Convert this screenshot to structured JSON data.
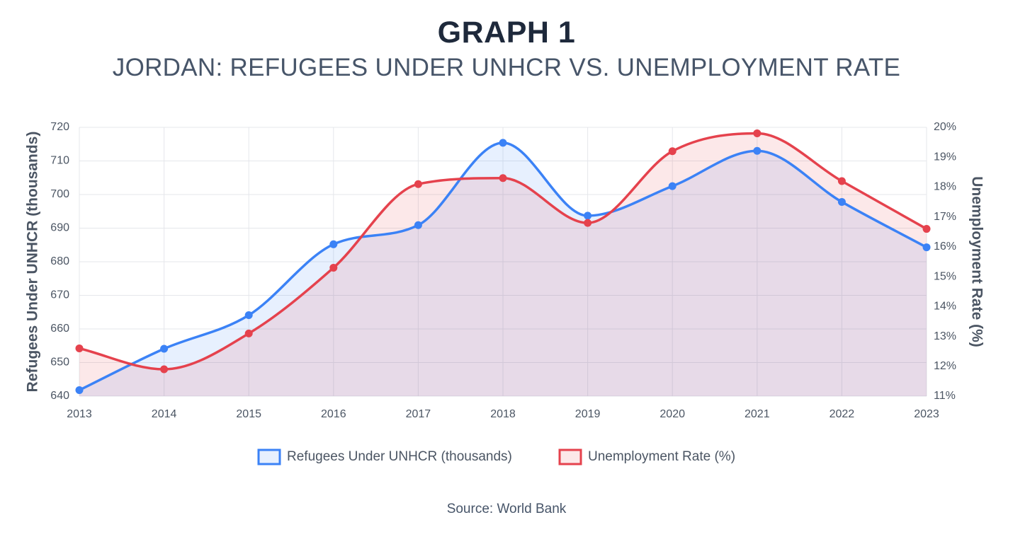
{
  "page": {
    "title": "GRAPH 1",
    "subtitle": "JORDAN: REFUGEES UNDER UNHCR VS. UNEMPLOYMENT RATE",
    "source": "Source: World Bank"
  },
  "colors": {
    "refugees": "#3b82f6",
    "refugees_fill": "rgba(59,130,246,0.12)",
    "unemployment": "#e5424d",
    "unemployment_fill": "rgba(229,66,77,0.12)",
    "grid": "#e5e7eb",
    "tick_text": "#4b5563",
    "axis_title": "#4b5563"
  },
  "chart_data": {
    "type": "line",
    "x": [
      "2013",
      "2014",
      "2015",
      "2016",
      "2017",
      "2018",
      "2019",
      "2020",
      "2021",
      "2022",
      "2023"
    ],
    "series": [
      {
        "name": "Refugees Under UNHCR (thousands)",
        "axis": "left",
        "values": [
          641.8,
          654.1,
          664.1,
          685.2,
          690.9,
          715.4,
          693.7,
          702.5,
          713.0,
          697.8,
          684.3
        ]
      },
      {
        "name": "Unemployment Rate (%)",
        "axis": "right",
        "values": [
          12.6,
          11.9,
          13.1,
          15.3,
          18.1,
          18.3,
          16.8,
          19.2,
          19.8,
          18.2,
          16.6
        ]
      }
    ],
    "y_left": {
      "label": "Refugees Under UNHCR (thousands)",
      "ylim": [
        640,
        720
      ],
      "ticks": [
        "640",
        "650",
        "660",
        "670",
        "680",
        "690",
        "700",
        "710",
        "720"
      ]
    },
    "y_right": {
      "label": "Unemployment Rate (%)",
      "ylim": [
        11,
        20
      ],
      "ticks": [
        "11%",
        "12%",
        "13%",
        "14%",
        "15%",
        "16%",
        "17%",
        "18%",
        "19%",
        "20%"
      ]
    },
    "grid": true,
    "legend": "bottom",
    "curve": "smooth",
    "filled": true
  }
}
